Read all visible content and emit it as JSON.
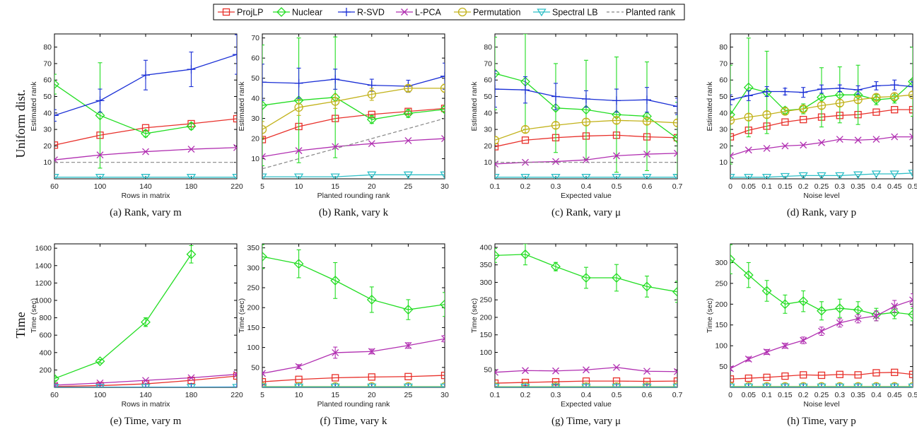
{
  "legend": [
    {
      "name": "ProjLP",
      "color": "#e8302a",
      "marker": "square"
    },
    {
      "name": "Nuclear",
      "color": "#22dd22",
      "marker": "diamond"
    },
    {
      "name": "R-SVD",
      "color": "#1a2fd6",
      "marker": "plus"
    },
    {
      "name": "L-PCA",
      "color": "#b12fb1",
      "marker": "cross"
    },
    {
      "name": "Permutation",
      "color": "#c2b21a",
      "marker": "circle"
    },
    {
      "name": "Spectral LB",
      "color": "#2fbfc7",
      "marker": "triangle-down"
    },
    {
      "name": "Planted rank",
      "color": "#888888",
      "marker": "dashed-line"
    }
  ],
  "row_labels": {
    "rank": "Uniform dist.",
    "time": "Time"
  },
  "chart_data": [
    {
      "type": "line",
      "caption": "(a) Rank, vary m",
      "xlabel": "Rows in matrix",
      "ylabel": "Estimated rank",
      "x": [
        60,
        100,
        140,
        180,
        220
      ],
      "xlim": [
        60,
        220
      ],
      "ylim": [
        0,
        88
      ],
      "xticks": [
        "60",
        "100",
        "140",
        "180",
        "220"
      ],
      "yticks": [
        10,
        20,
        30,
        40,
        50,
        60,
        70,
        80
      ],
      "series": [
        {
          "name": "ProjLP",
          "values": [
            20.5,
            26.5,
            31,
            33.5,
            36.5
          ]
        },
        {
          "name": "Nuclear",
          "values": [
            57.5,
            38.5,
            27.5,
            32,
            null
          ],
          "err": [
            6,
            32,
            2,
            2,
            0
          ]
        },
        {
          "name": "R-SVD",
          "values": [
            38.5,
            47.5,
            63,
            66.5,
            75.5
          ],
          "err": [
            3.5,
            7,
            9,
            10.5,
            12
          ]
        },
        {
          "name": "L-PCA",
          "values": [
            11.5,
            14.5,
            16.5,
            18,
            19
          ]
        },
        {
          "name": "Permutation",
          "values": [
            null,
            null,
            null,
            null,
            null
          ]
        },
        {
          "name": "Spectral LB",
          "values": [
            1,
            1,
            1,
            1,
            1
          ]
        },
        {
          "name": "Planted rank",
          "values": [
            10,
            10,
            10,
            10,
            10
          ]
        }
      ]
    },
    {
      "type": "line",
      "caption": "(b) Rank, vary k",
      "xlabel": "Planted rounding rank",
      "ylabel": "Estimated rank",
      "x": [
        5,
        10,
        15,
        20,
        25,
        30
      ],
      "xlim": [
        5,
        30
      ],
      "ylim": [
        0,
        72
      ],
      "xticks": [
        "5",
        "10",
        "15",
        "20",
        "25",
        "30"
      ],
      "yticks": [
        10,
        20,
        30,
        40,
        50,
        60,
        70
      ],
      "series": [
        {
          "name": "ProjLP",
          "values": [
            19.5,
            26,
            30,
            32,
            33.5,
            35
          ]
        },
        {
          "name": "Nuclear",
          "values": [
            36.5,
            39,
            40.5,
            29.5,
            32.5,
            34.5
          ],
          "err": [
            30,
            31,
            30,
            2,
            2,
            1.5
          ]
        },
        {
          "name": "R-SVD",
          "values": [
            48,
            47.5,
            49.5,
            46.5,
            46,
            51
          ],
          "err": [
            9,
            7.5,
            5,
            3,
            3,
            6.5
          ]
        },
        {
          "name": "L-PCA",
          "values": [
            11,
            14,
            16,
            17.5,
            19,
            20
          ]
        },
        {
          "name": "Permutation",
          "values": [
            24.5,
            35.5,
            38.5,
            42,
            45,
            45
          ],
          "err": [
            4,
            4,
            3.5,
            3,
            1.5,
            2
          ]
        },
        {
          "name": "Spectral LB",
          "values": [
            1,
            1,
            1,
            2,
            2,
            2
          ]
        },
        {
          "name": "Planted rank",
          "values": [
            5,
            10,
            15,
            20,
            25,
            30
          ]
        }
      ]
    },
    {
      "type": "line",
      "caption": "(c) Rank, vary μ",
      "xlabel": "Expected value",
      "ylabel": "Estimated rank",
      "x": [
        0.1,
        0.2,
        0.3,
        0.4,
        0.5,
        0.6,
        0.7
      ],
      "xlim": [
        0.1,
        0.7
      ],
      "ylim": [
        0,
        88
      ],
      "xticks": [
        "0.1",
        "0.2",
        "0.3",
        "0.4",
        "0.5",
        "0.6",
        "0.7"
      ],
      "yticks": [
        10,
        20,
        30,
        40,
        50,
        60,
        70,
        80
      ],
      "series": [
        {
          "name": "ProjLP",
          "values": [
            19.5,
            23.5,
            25,
            26,
            26.5,
            25.5,
            25
          ]
        },
        {
          "name": "Nuclear",
          "values": [
            64,
            59,
            43,
            42,
            39,
            38,
            24.5
          ],
          "err": [
            22,
            29,
            27,
            30,
            35,
            33,
            22
          ]
        },
        {
          "name": "R-SVD",
          "values": [
            54.5,
            54,
            50,
            48.5,
            47.5,
            48,
            44
          ],
          "err": [
            11,
            8,
            8,
            5,
            7,
            7.5,
            5
          ]
        },
        {
          "name": "L-PCA",
          "values": [
            9,
            10,
            10.5,
            11.5,
            14,
            15,
            15.5
          ]
        },
        {
          "name": "Permutation",
          "values": [
            23.5,
            30,
            32.5,
            34.5,
            35.5,
            35,
            34
          ],
          "err": [
            2,
            2,
            2,
            2,
            2,
            2,
            2
          ]
        },
        {
          "name": "Spectral LB",
          "values": [
            1,
            1,
            1,
            1,
            1,
            1,
            1
          ]
        },
        {
          "name": "Planted rank",
          "values": [
            10,
            10,
            10,
            10,
            10,
            10,
            10
          ]
        }
      ]
    },
    {
      "type": "line",
      "caption": "(d) Rank, vary p",
      "xlabel": "Noise level",
      "ylabel": "Estimated rank",
      "x": [
        0,
        0.05,
        0.1,
        0.15,
        0.2,
        0.25,
        0.3,
        0.35,
        0.4,
        0.45,
        0.5
      ],
      "xlim": [
        0,
        0.5
      ],
      "ylim": [
        0,
        88
      ],
      "xticks": [
        "0",
        "0.05",
        "0.1",
        "0.15",
        "0.2",
        "0.25",
        "0.3",
        "0.35",
        "0.4",
        "0.45",
        "0.5"
      ],
      "yticks": [
        10,
        20,
        30,
        40,
        50,
        60,
        70,
        80
      ],
      "series": [
        {
          "name": "ProjLP",
          "values": [
            25.5,
            29.5,
            32,
            34.5,
            36,
            37.5,
            38.5,
            39,
            40.5,
            42,
            42
          ]
        },
        {
          "name": "Nuclear",
          "values": [
            39,
            55.5,
            52.5,
            41.5,
            42.5,
            49.5,
            51,
            51,
            48,
            49,
            59
          ],
          "err": [
            30,
            30,
            25,
            2,
            3,
            18,
            17,
            18,
            3,
            3,
            21
          ]
        },
        {
          "name": "R-SVD",
          "values": [
            48,
            50.5,
            53,
            53,
            52.5,
            54.5,
            55,
            54,
            56.5,
            57,
            56
          ],
          "err": [
            3,
            3,
            3,
            2,
            3,
            2.5,
            2,
            2.5,
            2.5,
            3,
            3
          ]
        },
        {
          "name": "L-PCA",
          "values": [
            14,
            17.5,
            18.5,
            20,
            20.5,
            22,
            24,
            23.5,
            24,
            25.5,
            25.5
          ]
        },
        {
          "name": "Permutation",
          "values": [
            35.5,
            37.5,
            39,
            41,
            42.5,
            44.5,
            46,
            48,
            49.5,
            50,
            51
          ],
          "err": [
            2,
            2,
            2,
            2,
            2,
            2,
            2,
            2,
            2,
            2,
            2
          ]
        },
        {
          "name": "Spectral LB",
          "values": [
            1,
            1,
            1,
            1.5,
            2,
            2,
            2,
            2.5,
            3,
            3,
            3.5
          ]
        },
        {
          "name": "Planted rank",
          "values": [
            null,
            null,
            null,
            null,
            null,
            null,
            null,
            null,
            null,
            null,
            null
          ]
        }
      ]
    },
    {
      "type": "line",
      "caption": "(e) Time, vary m",
      "xlabel": "Rows in matrix",
      "ylabel": "Time (sec)",
      "x": [
        60,
        100,
        140,
        180,
        220
      ],
      "xlim": [
        60,
        220
      ],
      "ylim": [
        0,
        1650
      ],
      "xticks": [
        "60",
        "100",
        "140",
        "180",
        "220"
      ],
      "yticks": [
        200,
        400,
        600,
        800,
        1000,
        1200,
        1400,
        1600
      ],
      "series": [
        {
          "name": "ProjLP",
          "values": [
            10,
            20,
            40,
            80,
            130
          ]
        },
        {
          "name": "Nuclear",
          "values": [
            100,
            300,
            750,
            1530,
            null
          ],
          "err": [
            20,
            20,
            50,
            100,
            0
          ]
        },
        {
          "name": "R-SVD",
          "values": [
            2,
            2,
            3,
            3,
            4
          ]
        },
        {
          "name": "L-PCA",
          "values": [
            25,
            50,
            80,
            110,
            150
          ]
        },
        {
          "name": "Permutation",
          "values": [
            null,
            null,
            null,
            null,
            null
          ]
        },
        {
          "name": "Spectral LB",
          "values": [
            1,
            1,
            1,
            1,
            1
          ]
        },
        {
          "name": "Planted rank",
          "values": [
            null,
            null,
            null,
            null,
            null
          ]
        }
      ]
    },
    {
      "type": "line",
      "caption": "(f) Time, vary k",
      "xlabel": "Planted rounding rank",
      "ylabel": "Time (sec)",
      "x": [
        5,
        10,
        15,
        20,
        25,
        30
      ],
      "xlim": [
        5,
        30
      ],
      "ylim": [
        0,
        360
      ],
      "xticks": [
        "5",
        "10",
        "15",
        "20",
        "25",
        "30"
      ],
      "yticks": [
        50,
        100,
        150,
        200,
        250,
        300,
        350
      ],
      "series": [
        {
          "name": "ProjLP",
          "values": [
            14,
            20,
            24,
            26,
            27,
            30
          ]
        },
        {
          "name": "Nuclear",
          "values": [
            328,
            310,
            268,
            220,
            195,
            208
          ],
          "err": [
            30,
            35,
            45,
            32,
            25,
            30
          ]
        },
        {
          "name": "R-SVD",
          "values": [
            1,
            1,
            1,
            1,
            1,
            1
          ]
        },
        {
          "name": "L-PCA",
          "values": [
            35,
            52,
            87,
            90,
            105,
            122
          ],
          "err": [
            3,
            5,
            14,
            6,
            7,
            8
          ]
        },
        {
          "name": "Permutation",
          "values": [
            2,
            2,
            2,
            2,
            2,
            2
          ]
        },
        {
          "name": "Spectral LB",
          "values": [
            1,
            1,
            1,
            1,
            1,
            1
          ]
        },
        {
          "name": "Planted rank",
          "values": [
            null,
            null,
            null,
            null,
            null,
            null
          ]
        }
      ]
    },
    {
      "type": "line",
      "caption": "(g) Time, vary μ",
      "xlabel": "Expected value",
      "ylabel": "Time (sec)",
      "x": [
        0.1,
        0.2,
        0.3,
        0.4,
        0.5,
        0.6,
        0.7
      ],
      "xlim": [
        0.1,
        0.7
      ],
      "ylim": [
        0,
        410
      ],
      "xticks": [
        "0.1",
        "0.2",
        "0.3",
        "0.4",
        "0.5",
        "0.6",
        "0.7"
      ],
      "yticks": [
        50,
        100,
        150,
        200,
        250,
        300,
        350,
        400
      ],
      "series": [
        {
          "name": "ProjLP",
          "values": [
            12,
            14,
            16,
            18,
            18,
            17,
            18
          ]
        },
        {
          "name": "Nuclear",
          "values": [
            377,
            380,
            345,
            313,
            313,
            288,
            273
          ],
          "err": [
            20,
            30,
            12,
            30,
            38,
            30,
            30
          ]
        },
        {
          "name": "R-SVD",
          "values": [
            1,
            1,
            1,
            1,
            1,
            1,
            1
          ]
        },
        {
          "name": "L-PCA",
          "values": [
            43,
            48,
            47,
            50,
            57,
            46,
            45
          ]
        },
        {
          "name": "Permutation",
          "values": [
            2,
            2,
            2,
            2,
            2,
            2,
            2
          ]
        },
        {
          "name": "Spectral LB",
          "values": [
            1,
            1,
            1,
            1,
            1,
            1,
            1
          ]
        },
        {
          "name": "Planted rank",
          "values": [
            null,
            null,
            null,
            null,
            null,
            null,
            null
          ]
        }
      ]
    },
    {
      "type": "line",
      "caption": "(h) Time, vary p",
      "xlabel": "Noise level",
      "ylabel": "Time (sec)",
      "x": [
        0,
        0.05,
        0.1,
        0.15,
        0.2,
        0.25,
        0.3,
        0.35,
        0.4,
        0.45,
        0.5
      ],
      "xlim": [
        0,
        0.5
      ],
      "ylim": [
        0,
        345
      ],
      "xticks": [
        "0",
        "0.05",
        "0.1",
        "0.15",
        "0.2",
        "0.25",
        "0.3",
        "0.35",
        "0.4",
        "0.45",
        "0.5"
      ],
      "yticks": [
        50,
        100,
        150,
        200,
        250,
        300
      ],
      "series": [
        {
          "name": "ProjLP",
          "values": [
            20,
            22,
            24,
            27,
            30,
            29,
            31,
            30,
            35,
            36,
            31
          ]
        },
        {
          "name": "Nuclear",
          "values": [
            308,
            270,
            232,
            200,
            207,
            184,
            190,
            186,
            175,
            180,
            175
          ],
          "err": [
            35,
            30,
            25,
            22,
            25,
            22,
            22,
            20,
            15,
            15,
            15
          ]
        },
        {
          "name": "R-SVD",
          "values": [
            1,
            1,
            1,
            1,
            1,
            1,
            1,
            1,
            1,
            1,
            1
          ]
        },
        {
          "name": "L-PCA",
          "values": [
            45,
            68,
            85,
            100,
            113,
            135,
            155,
            165,
            172,
            195,
            210
          ],
          "err": [
            5,
            5,
            6,
            6,
            8,
            10,
            10,
            10,
            12,
            14,
            15
          ]
        },
        {
          "name": "Permutation",
          "values": [
            2,
            2,
            2,
            2,
            2,
            2,
            2,
            2,
            2,
            2,
            2
          ]
        },
        {
          "name": "Spectral LB",
          "values": [
            1,
            1,
            1,
            1,
            1,
            1,
            1,
            1,
            1,
            1,
            1
          ]
        },
        {
          "name": "Planted rank",
          "values": [
            null,
            null,
            null,
            null,
            null,
            null,
            null,
            null,
            null,
            null,
            null
          ]
        }
      ]
    }
  ]
}
